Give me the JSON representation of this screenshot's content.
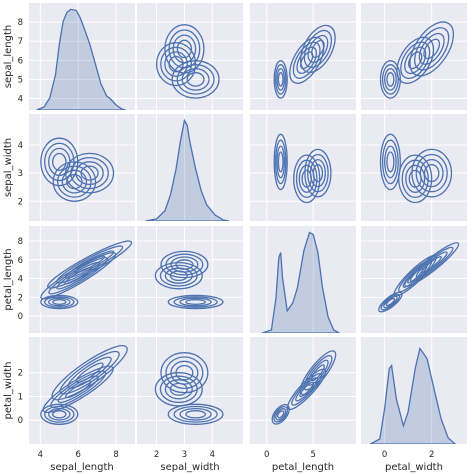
{
  "chart_data": {
    "type": "pairplot",
    "variables": [
      "sepal_length",
      "sepal_width",
      "petal_length",
      "petal_width"
    ],
    "diagonal": "kde",
    "off_diagonal": "kde-contour",
    "color": "#4c72b0",
    "grid": true,
    "ranges": {
      "sepal_length": [
        3.4,
        9.0
      ],
      "sepal_width": [
        1.3,
        5.1
      ],
      "petal_length": [
        -1.8,
        9.6
      ],
      "petal_width": [
        -1.0,
        3.5
      ]
    },
    "y_ticks": {
      "sepal_length": [
        "4",
        "5",
        "6",
        "7",
        "8"
      ],
      "sepal_width": [
        "2",
        "3",
        "4"
      ],
      "petal_length": [
        "0",
        "2",
        "4",
        "6",
        "8"
      ],
      "petal_width": [
        "0",
        "1",
        "2"
      ]
    },
    "x_ticks": {
      "sepal_length": [
        "4",
        "6",
        "8"
      ],
      "sepal_width": [
        "2",
        "3",
        "4"
      ],
      "petal_length": [
        "0",
        "5"
      ],
      "petal_width": [
        "0",
        "2"
      ]
    },
    "diag_kde": {
      "sepal_length": [
        [
          3.8,
          0.0
        ],
        [
          4.2,
          0.03
        ],
        [
          4.5,
          0.12
        ],
        [
          4.8,
          0.35
        ],
        [
          5.0,
          0.65
        ],
        [
          5.2,
          0.88
        ],
        [
          5.4,
          0.97
        ],
        [
          5.6,
          1.0
        ],
        [
          5.9,
          0.99
        ],
        [
          6.1,
          0.92
        ],
        [
          6.3,
          0.82
        ],
        [
          6.6,
          0.66
        ],
        [
          6.9,
          0.46
        ],
        [
          7.2,
          0.26
        ],
        [
          7.5,
          0.14
        ],
        [
          7.7,
          0.11
        ],
        [
          8.0,
          0.05
        ],
        [
          8.3,
          0.01
        ],
        [
          8.5,
          0.0
        ]
      ],
      "sepal_width": [
        [
          1.6,
          0.0
        ],
        [
          2.0,
          0.02
        ],
        [
          2.3,
          0.1
        ],
        [
          2.5,
          0.26
        ],
        [
          2.7,
          0.52
        ],
        [
          2.85,
          0.78
        ],
        [
          3.0,
          1.0
        ],
        [
          3.1,
          0.95
        ],
        [
          3.2,
          0.78
        ],
        [
          3.4,
          0.52
        ],
        [
          3.6,
          0.3
        ],
        [
          3.8,
          0.16
        ],
        [
          4.1,
          0.06
        ],
        [
          4.4,
          0.01
        ],
        [
          4.6,
          0.0
        ]
      ],
      "petal_length": [
        [
          -0.5,
          0.0
        ],
        [
          0.5,
          0.03
        ],
        [
          1.0,
          0.35
        ],
        [
          1.3,
          0.75
        ],
        [
          1.5,
          0.8
        ],
        [
          1.7,
          0.55
        ],
        [
          2.2,
          0.22
        ],
        [
          2.8,
          0.3
        ],
        [
          3.3,
          0.45
        ],
        [
          4.0,
          0.82
        ],
        [
          4.6,
          1.0
        ],
        [
          5.0,
          0.98
        ],
        [
          5.5,
          0.8
        ],
        [
          6.0,
          0.45
        ],
        [
          6.6,
          0.16
        ],
        [
          7.2,
          0.03
        ],
        [
          7.8,
          0.0
        ]
      ],
      "petal_width": [
        [
          -0.6,
          0.0
        ],
        [
          -0.2,
          0.05
        ],
        [
          0.0,
          0.35
        ],
        [
          0.2,
          0.75
        ],
        [
          0.3,
          0.78
        ],
        [
          0.5,
          0.45
        ],
        [
          0.8,
          0.18
        ],
        [
          1.0,
          0.32
        ],
        [
          1.3,
          0.75
        ],
        [
          1.5,
          0.95
        ],
        [
          1.8,
          0.85
        ],
        [
          2.1,
          0.55
        ],
        [
          2.4,
          0.25
        ],
        [
          2.7,
          0.06
        ],
        [
          3.0,
          0.0
        ]
      ]
    },
    "contour_clusters": {
      "sepal_length|sepal_width": [
        [
          5.0,
          3.4,
          0.35,
          0.3,
          0.0
        ],
        [
          5.8,
          2.7,
          0.4,
          0.25,
          0.0
        ],
        [
          6.6,
          3.0,
          0.45,
          0.25,
          0.0
        ]
      ],
      "sepal_length|petal_length": [
        [
          5.0,
          1.5,
          0.35,
          0.25,
          0.0
        ],
        [
          6.0,
          4.3,
          0.5,
          0.6,
          0.7
        ],
        [
          6.6,
          5.5,
          0.55,
          0.6,
          0.7
        ]
      ],
      "sepal_length|petal_width": [
        [
          5.0,
          0.25,
          0.35,
          0.15,
          0.0
        ],
        [
          6.0,
          1.3,
          0.5,
          0.25,
          0.6
        ],
        [
          6.6,
          2.0,
          0.55,
          0.3,
          0.6
        ]
      ],
      "sepal_width|petal_length": [
        [
          3.4,
          1.5,
          0.35,
          0.25,
          0.0
        ],
        [
          2.8,
          4.3,
          0.3,
          0.5,
          0.0
        ],
        [
          3.0,
          5.5,
          0.3,
          0.5,
          0.0
        ]
      ],
      "sepal_width|petal_width": [
        [
          3.4,
          0.25,
          0.35,
          0.15,
          0.0
        ],
        [
          2.8,
          1.3,
          0.3,
          0.25,
          0.0
        ],
        [
          3.0,
          2.0,
          0.3,
          0.3,
          0.0
        ]
      ],
      "petal_length|petal_width": [
        [
          1.5,
          0.25,
          0.3,
          0.15,
          0.5
        ],
        [
          4.3,
          1.3,
          0.6,
          0.25,
          0.8
        ],
        [
          5.5,
          2.0,
          0.6,
          0.3,
          0.8
        ]
      ]
    }
  }
}
